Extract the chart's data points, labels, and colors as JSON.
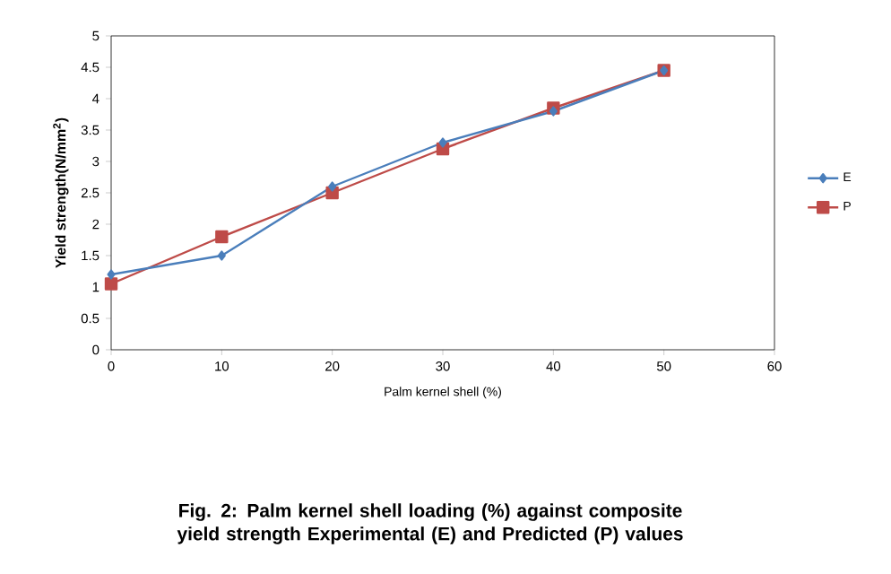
{
  "chart_data": {
    "type": "line",
    "xlabel": "Palm kernel shell (%)",
    "ylabel": "Yield strength(N/mm$^{2}$)",
    "annotations": [
      "Fig. 2: Palm kernel shell  loading (%) against composite yield strength Experimental (E) and Predicted (P) values"
    ],
    "x": [
      0,
      10,
      20,
      30,
      40,
      50
    ],
    "series": [
      {
        "name": "E",
        "color": "#4a7ebb",
        "marker": "diamond",
        "values": [
          1.2,
          1.5,
          2.6,
          3.3,
          3.8,
          4.45
        ]
      },
      {
        "name": "P",
        "color": "#be4b48",
        "marker": "square",
        "values": [
          1.05,
          1.8,
          2.5,
          3.2,
          3.85,
          4.45
        ]
      }
    ],
    "xlim": [
      0,
      60
    ],
    "xticks": [
      0,
      10,
      20,
      30,
      40,
      50,
      60
    ],
    "ylim": [
      0,
      5
    ],
    "yticks": [
      0,
      0.5,
      1,
      1.5,
      2,
      2.5,
      3,
      3.5,
      4,
      4.5,
      5
    ],
    "grid": false,
    "legend": "right",
    "line_style": "solid"
  }
}
